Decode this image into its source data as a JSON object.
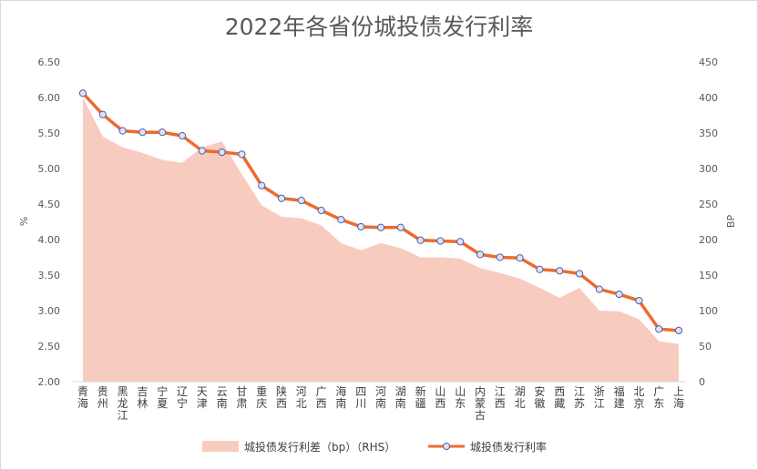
{
  "chart_data": {
    "type": "line",
    "title": "2022年各省份城投债发行利率",
    "ylabel_left": "%",
    "ylabel_right": "BP",
    "y_left_ticks": [
      "6.50",
      "6.00",
      "5.50",
      "5.00",
      "4.50",
      "4.00",
      "3.50",
      "3.00",
      "2.50",
      "2.00"
    ],
    "y_right_ticks": [
      "450",
      "400",
      "350",
      "300",
      "250",
      "200",
      "150",
      "100",
      "50",
      "0"
    ],
    "y_left_range": [
      2.0,
      6.5
    ],
    "y_right_range": [
      0,
      450
    ],
    "categories": [
      "青海",
      "贵州",
      "黑龙江",
      "吉林",
      "宁夏",
      "辽宁",
      "天津",
      "云南",
      "甘肃",
      "重庆",
      "陕西",
      "河北",
      "广西",
      "海南",
      "四川",
      "河南",
      "湖南",
      "新疆",
      "山西",
      "山东",
      "内蒙古",
      "江西",
      "湖北",
      "安徽",
      "西藏",
      "江苏",
      "浙江",
      "福建",
      "北京",
      "广东",
      "上海"
    ],
    "series": [
      {
        "name": "城投债发行利差（bp）（RHS）",
        "type": "area",
        "axis": "right",
        "color": "#f8cbbf",
        "values": [
          400,
          345,
          330,
          322,
          312,
          308,
          330,
          338,
          292,
          248,
          232,
          230,
          220,
          195,
          185,
          195,
          188,
          175,
          175,
          173,
          160,
          153,
          145,
          132,
          118,
          132,
          100,
          99,
          88,
          57,
          53
        ]
      },
      {
        "name": "城投债发行利率",
        "type": "line",
        "axis": "left",
        "color": "#ed6b2f",
        "marker_fill": "#dde3f5",
        "marker_stroke": "#4f5fa8",
        "values": [
          6.06,
          5.76,
          5.53,
          5.51,
          5.51,
          5.46,
          5.25,
          5.23,
          5.2,
          4.76,
          4.58,
          4.55,
          4.41,
          4.28,
          4.18,
          4.17,
          4.17,
          3.99,
          3.98,
          3.97,
          3.79,
          3.75,
          3.74,
          3.58,
          3.56,
          3.52,
          3.3,
          3.23,
          3.14,
          2.74,
          2.72
        ]
      }
    ],
    "grid": false,
    "legend_position": "bottom"
  }
}
